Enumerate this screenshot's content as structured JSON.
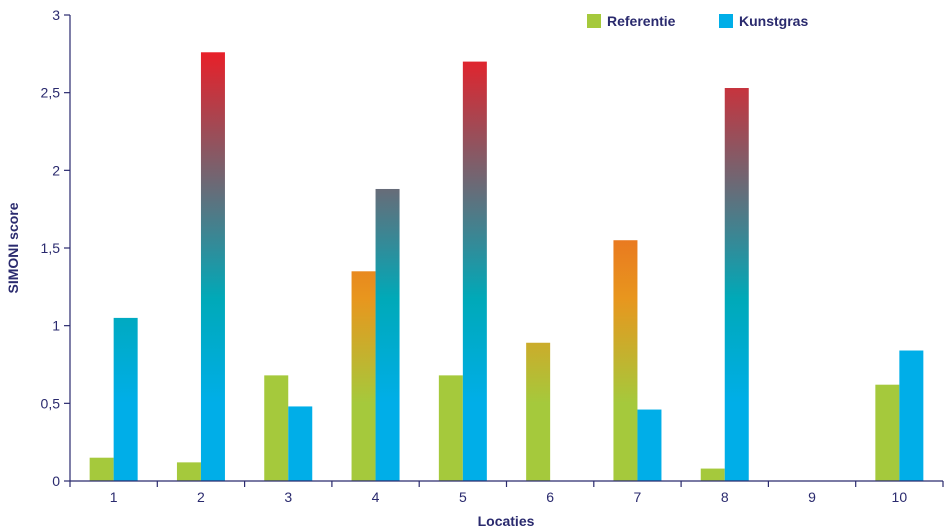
{
  "chart_data": {
    "type": "bar",
    "title": "",
    "xlabel": "Locaties",
    "ylabel": "SIMONI score",
    "categories": [
      "1",
      "2",
      "3",
      "4",
      "5",
      "6",
      "7",
      "8",
      "9",
      "10"
    ],
    "ylim": [
      0,
      3
    ],
    "yticks": [
      0,
      0.5,
      1,
      1.5,
      2,
      2.5,
      3
    ],
    "ytick_labels": [
      "0",
      "0,5",
      "1",
      "1,5",
      "2",
      "2,5",
      "3"
    ],
    "grid": false,
    "legend_position": "top-right",
    "series": [
      {
        "name": "Referentie",
        "color": "#a5c93c",
        "values": [
          0.15,
          0.12,
          0.68,
          1.35,
          0.68,
          0.89,
          1.55,
          0.08,
          0,
          0.62
        ]
      },
      {
        "name": "Kunstgras",
        "color": "#00aee8",
        "values": [
          1.05,
          2.76,
          0.48,
          1.88,
          2.7,
          0,
          0.46,
          2.53,
          0,
          0.84
        ]
      }
    ],
    "gradient": {
      "low_color_blue": "#00aee8",
      "low_color_green": "#a5c93c",
      "mid_color": "#00a9b8",
      "high_color": "#ee1c25",
      "threshold_value": 0.5,
      "max_value": 2.8
    }
  }
}
